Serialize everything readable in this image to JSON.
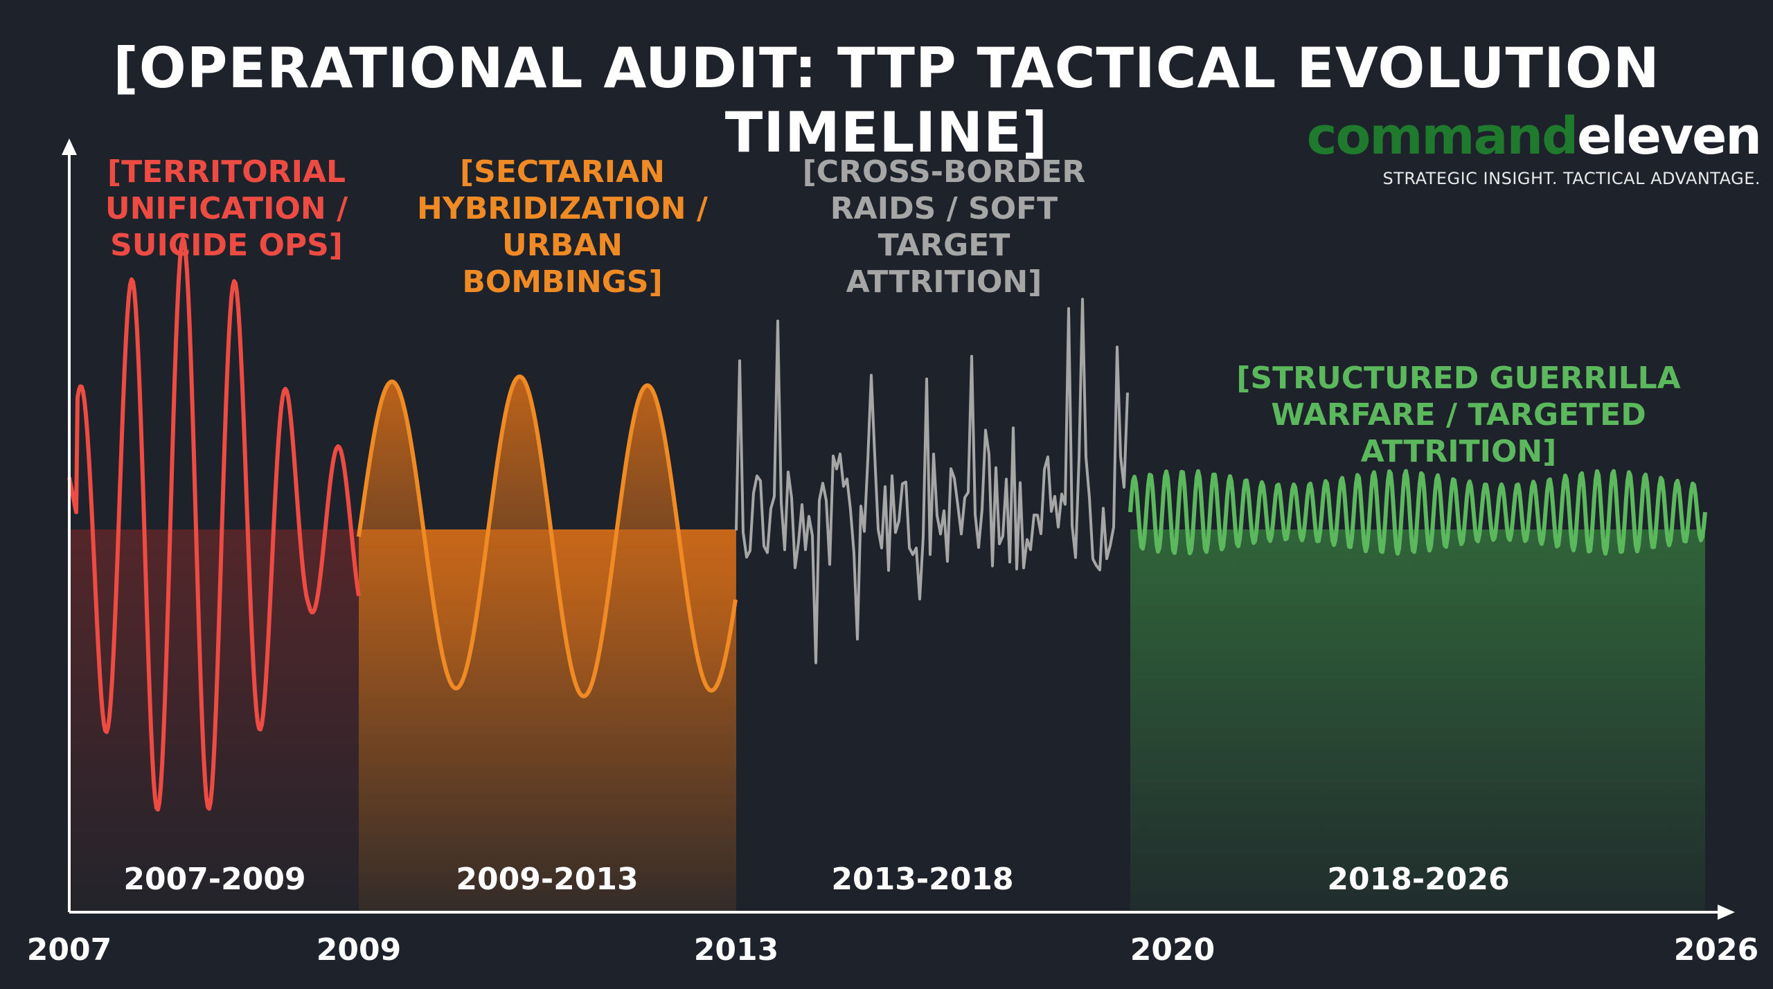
{
  "chart_data": {
    "type": "line",
    "title": "[OPERATIONAL AUDIT: TTP TACTICAL EVOLUTION TIMELINE]",
    "xlabel": "",
    "ylabel": "",
    "x_ticks": [
      "2007",
      "2009",
      "2013",
      "2020",
      "2026"
    ],
    "grid": false,
    "legend": "none",
    "series": [
      {
        "name": "[TERRITORIAL UNIFICATION / SUICIDE OPS]",
        "period": "2007-2009",
        "pattern": "high-amplitude rapid oscillation",
        "color": "#ee4b43"
      },
      {
        "name": "[SECTARIAN HYBRIDIZATION / URBAN BOMBINGS]",
        "period": "2009-2013",
        "pattern": "large slow waves with filled area",
        "color": "#f08a24"
      },
      {
        "name": "[CROSS-BORDER RAIDS / SOFT TARGET ATTRITION]",
        "period": "2013-2018",
        "pattern": "irregular spikes",
        "color": "#a6a6a6"
      },
      {
        "name": "[STRUCTURED GUERRILLA WARFARE / TARGETED ATTRITION]",
        "period": "2018-2026",
        "pattern": "steady low-amplitude high-frequency oscillation",
        "color": "#5cb85c"
      }
    ]
  },
  "branding": {
    "logo_part1": "command",
    "logo_part2": "eleven",
    "tagline": "STRATEGIC INSIGHT. TACTICAL ADVANTAGE."
  }
}
